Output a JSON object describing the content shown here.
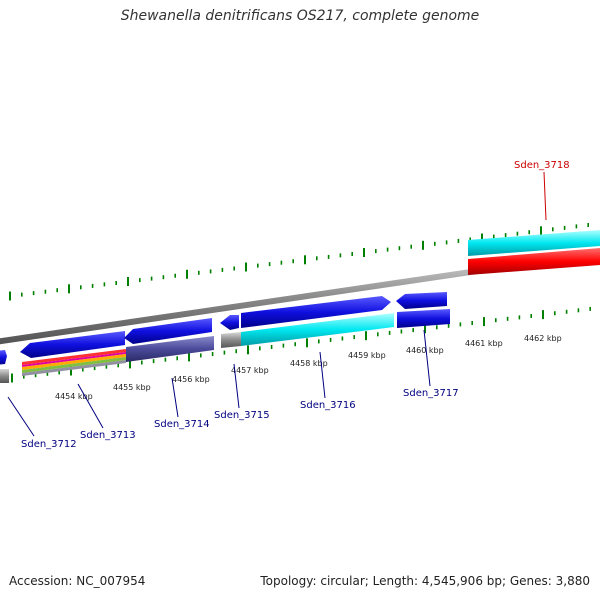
{
  "title": "Shewanella denitrificans OS217, complete genome",
  "footer": {
    "accession": "Accession: NC_007954",
    "summary": "Topology: circular; Length: 4,545,906 bp; Genes: 3,880"
  },
  "colors": {
    "forward_gene": "#1010e0",
    "reverse_gene": "#00e8f0",
    "highlight_gene": "#ff0000",
    "pseudo": "#4a4a9a",
    "backbone": "#888888",
    "tick": "#008000",
    "label_default": "#000080",
    "label_highlight": "#cc0000"
  },
  "scale": {
    "ticks": [
      {
        "label": "4454 kbp"
      },
      {
        "label": "4455 kbp"
      },
      {
        "label": "4456 kbp"
      },
      {
        "label": "4457 kbp"
      },
      {
        "label": "4458 kbp"
      },
      {
        "label": "4459 kbp"
      },
      {
        "label": "4460 kbp"
      },
      {
        "label": "4461 kbp"
      },
      {
        "label": "4462 kbp"
      }
    ]
  },
  "gene_labels": [
    {
      "text": "Sden_3712"
    },
    {
      "text": "Sden_3713"
    },
    {
      "text": "Sden_3714"
    },
    {
      "text": "Sden_3715"
    },
    {
      "text": "Sden_3716"
    },
    {
      "text": "Sden_3717"
    },
    {
      "text": "Sden_3718"
    }
  ]
}
